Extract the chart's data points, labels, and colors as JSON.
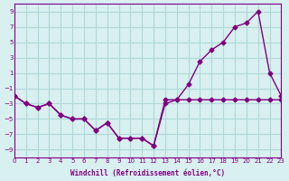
{
  "line1_x": [
    0,
    1,
    2,
    3,
    4,
    5,
    6,
    7,
    8,
    9,
    10,
    11,
    12,
    13,
    14,
    15,
    16,
    17,
    18,
    19,
    20,
    21,
    22,
    23
  ],
  "line1_y": [
    -2,
    -3,
    -3.5,
    -3,
    -4.5,
    -5,
    -5,
    -6.5,
    -5.5,
    -7.5,
    -7.5,
    -7.5,
    -8.5,
    -3,
    -2.5,
    -0.5,
    2.5,
    4,
    5,
    7,
    7.5,
    9,
    1,
    -2
  ],
  "line2_x": [
    0,
    1,
    2,
    3,
    4,
    5,
    6,
    7,
    8,
    9,
    10,
    11,
    12,
    13,
    14,
    15,
    16,
    17,
    18,
    19,
    20,
    21,
    22,
    23
  ],
  "line2_y": [
    -2,
    -3,
    -3.5,
    -3,
    -4.5,
    -5,
    -5,
    -6.5,
    -5.5,
    -7.5,
    -7.5,
    -7.5,
    -8.5,
    -2.5,
    -2.5,
    -2.5,
    -2.5,
    -2.5,
    -2.5,
    -2.5,
    -2.5,
    -2.5,
    -2.5,
    -2.5
  ],
  "color": "#800080",
  "background": "#d8f0f0",
  "grid_color": "#b0d8d8",
  "xlabel": "Windchill (Refroidissement éolien,°C)",
  "ylim": [
    -10,
    10
  ],
  "xlim": [
    0,
    23
  ],
  "yticks": [
    -9,
    -7,
    -5,
    -3,
    -1,
    1,
    3,
    5,
    7,
    9
  ],
  "xticks": [
    0,
    1,
    2,
    3,
    4,
    5,
    6,
    7,
    8,
    9,
    10,
    11,
    12,
    13,
    14,
    15,
    16,
    17,
    18,
    19,
    20,
    21,
    22,
    23
  ]
}
